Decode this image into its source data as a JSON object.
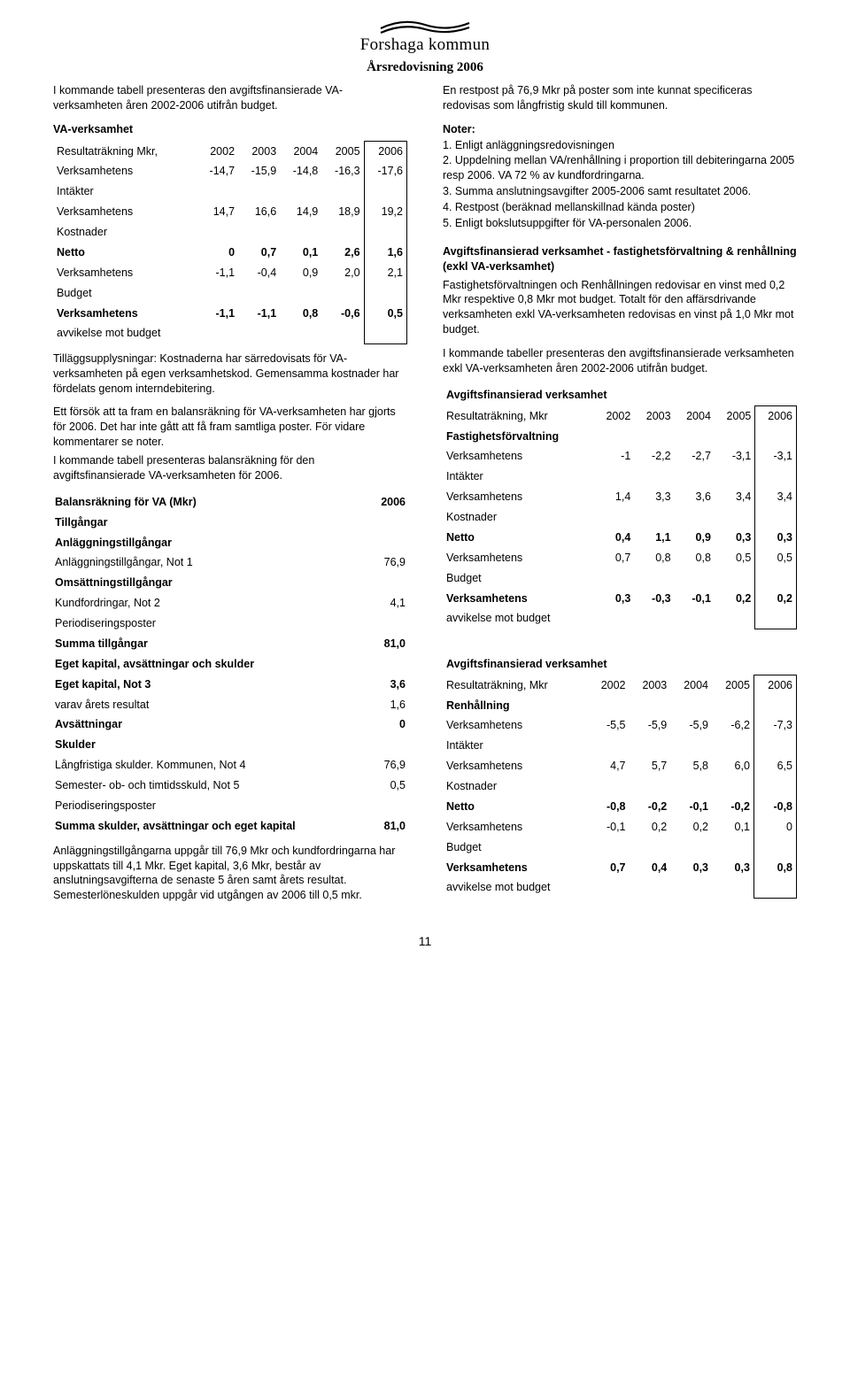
{
  "header": {
    "brand": "Forshaga kommun",
    "subtitle": "Årsredovisning 2006"
  },
  "left": {
    "intro": "I kommande tabell presenteras den avgiftsfinansierade VA-verksamheten åren 2002-2006 utifrån budget.",
    "va_title": "VA-verksamhet",
    "va_table": {
      "head": [
        "Resultaträkning Mkr,",
        "2002",
        "2003",
        "2004",
        "2005",
        "2006"
      ],
      "rows": [
        [
          "Verksamhetens",
          "-14,7",
          "-15,9",
          "-14,8",
          "-16,3",
          "-17,6"
        ],
        [
          "Intäkter",
          "",
          "",
          "",
          "",
          ""
        ],
        [
          "Verksamhetens",
          "14,7",
          "16,6",
          "14,9",
          "18,9",
          "19,2"
        ],
        [
          "Kostnader",
          "",
          "",
          "",
          "",
          ""
        ],
        [
          "Netto",
          "0",
          "0,7",
          "0,1",
          "2,6",
          "1,6"
        ],
        [
          "Verksamhetens",
          "-1,1",
          "-0,4",
          "0,9",
          "2,0",
          "2,1"
        ],
        [
          "Budget",
          "",
          "",
          "",
          "",
          ""
        ],
        [
          "Verksamhetens",
          "-1,1",
          "-1,1",
          "0,8",
          "-0,6",
          "0,5"
        ],
        [
          "avvikelse mot budget",
          "",
          "",
          "",
          "",
          ""
        ]
      ],
      "bold_rows": [
        4,
        7
      ]
    },
    "para2": "Tilläggsupplysningar: Kostnaderna har särredovisats för VA-verksamheten på egen verksamhetskod. Gemensamma kostnader har fördelats genom interndebitering.",
    "para3": "Ett försök att ta fram en balansräkning för VA-verksamheten har gjorts för 2006. Det har inte gått att få fram samtliga poster. För vidare kommentarer se noter.",
    "para3b": "I kommande tabell presenteras balansräkning för den avgiftsfinansierade VA-verksamheten för 2006.",
    "balance_table": {
      "rows": [
        [
          "Balansräkning för VA (Mkr)",
          "2006",
          true
        ],
        [
          "Tillgångar",
          "",
          true
        ],
        [
          "Anläggningstillgångar",
          "",
          true
        ],
        [
          "Anläggningstillgångar, Not 1",
          "76,9",
          false
        ],
        [
          "Omsättningstillgångar",
          "",
          true
        ],
        [
          "Kundfordringar, Not 2",
          "4,1",
          false
        ],
        [
          "Periodiseringsposter",
          "",
          false
        ],
        [
          "Summa tillgångar",
          "81,0",
          true
        ],
        [
          "Eget kapital, avsättningar och skulder",
          "",
          true
        ],
        [
          "Eget kapital, Not 3",
          "3,6",
          true
        ],
        [
          "varav årets resultat",
          "1,6",
          false
        ],
        [
          "Avsättningar",
          "0",
          true
        ],
        [
          "Skulder",
          "",
          true
        ],
        [
          "Långfristiga skulder. Kommunen, Not 4",
          "76,9",
          false
        ],
        [
          "Semester- ob- och timtidsskuld, Not 5",
          "0,5",
          false
        ],
        [
          "Periodiseringsposter",
          "",
          false
        ],
        [
          "Summa skulder, avsättningar och eget kapital",
          "81,0",
          true
        ]
      ]
    },
    "para4": "Anläggningstillgångarna uppgår till 76,9 Mkr och kundfordringarna har uppskattats till 4,1 Mkr. Eget kapital, 3,6 Mkr, består av anslutningsavgifterna de senaste 5 åren samt årets resultat. Semesterlöneskulden uppgår vid utgången av 2006 till 0,5 mkr."
  },
  "right": {
    "intro": "En restpost på 76,9 Mkr på poster som inte kunnat specificeras redovisas som långfristig skuld till kommunen.",
    "notes_title": "Noter:",
    "notes": [
      "1. Enligt anläggningsredovisningen",
      "2. Uppdelning mellan VA/renhållning i proportion till debiteringarna 2005 resp 2006. VA 72 % av kundfordringarna.",
      "3. Summa anslutningsavgifter 2005-2006 samt resultatet 2006.",
      "4. Restpost (beräknad mellanskillnad kända poster)",
      "5. Enligt bokslutsuppgifter för VA-personalen 2006."
    ],
    "section2_title": "Avgiftsfinansierad verksamhet - fastighetsförvaltning & renhållning (exkl VA-verksamhet)",
    "para2": "Fastighetsförvaltningen och Renhållningen redovisar en vinst med 0,2 Mkr respektive 0,8 Mkr mot budget. Totalt för den affärsdrivande verksamheten exkl VA-verksamheten redovisas en vinst på 1,0 Mkr mot budget.",
    "para3": "I kommande tabeller presenteras den avgiftsfinansierade verksamheten exkl VA-verksamheten åren 2002-2006 utifrån budget.",
    "table2": {
      "head1": [
        "Avgiftsfinansierad verksamhet",
        "",
        "",
        "",
        "",
        ""
      ],
      "head2": [
        "Resultaträkning, Mkr",
        "2002",
        "2003",
        "2004",
        "2005",
        "2006"
      ],
      "subhead": "Fastighetsförvaltning",
      "rows": [
        [
          "Verksamhetens",
          "-1",
          "-2,2",
          "-2,7",
          "-3,1",
          "-3,1"
        ],
        [
          "Intäkter",
          "",
          "",
          "",
          "",
          ""
        ],
        [
          "Verksamhetens",
          "1,4",
          "3,3",
          "3,6",
          "3,4",
          "3,4"
        ],
        [
          "Kostnader",
          "",
          "",
          "",
          "",
          ""
        ],
        [
          "Netto",
          "0,4",
          "1,1",
          "0,9",
          "0,3",
          "0,3"
        ],
        [
          "Verksamhetens",
          "0,7",
          "0,8",
          "0,8",
          "0,5",
          "0,5"
        ],
        [
          "Budget",
          "",
          "",
          "",
          "",
          ""
        ],
        [
          "Verksamhetens",
          "0,3",
          "-0,3",
          "-0,1",
          "0,2",
          "0,2"
        ],
        [
          "avvikelse mot budget",
          "",
          "",
          "",
          "",
          ""
        ]
      ],
      "bold_rows": [
        4,
        7
      ]
    },
    "table3": {
      "head1": [
        "Avgiftsfinansierad verksamhet",
        "",
        "",
        "",
        "",
        ""
      ],
      "head2": [
        "Resultaträkning, Mkr",
        "2002",
        "2003",
        "2004",
        "2005",
        "2006"
      ],
      "subhead": "Renhållning",
      "rows": [
        [
          "Verksamhetens",
          "-5,5",
          "-5,9",
          "-5,9",
          "-6,2",
          "-7,3"
        ],
        [
          "Intäkter",
          "",
          "",
          "",
          "",
          ""
        ],
        [
          "Verksamhetens",
          "4,7",
          "5,7",
          "5,8",
          "6,0",
          "6,5"
        ],
        [
          "Kostnader",
          "",
          "",
          "",
          "",
          ""
        ],
        [
          "Netto",
          "-0,8",
          "-0,2",
          "-0,1",
          "-0,2",
          "-0,8"
        ],
        [
          "Verksamhetens",
          "-0,1",
          "0,2",
          "0,2",
          "0,1",
          "0"
        ],
        [
          "Budget",
          "",
          "",
          "",
          "",
          ""
        ],
        [
          "Verksamhetens",
          "0,7",
          "0,4",
          "0,3",
          "0,3",
          "0,8"
        ],
        [
          "avvikelse mot budget",
          "",
          "",
          "",
          "",
          ""
        ]
      ],
      "bold_rows": [
        4,
        7
      ]
    }
  },
  "page_number": "11"
}
